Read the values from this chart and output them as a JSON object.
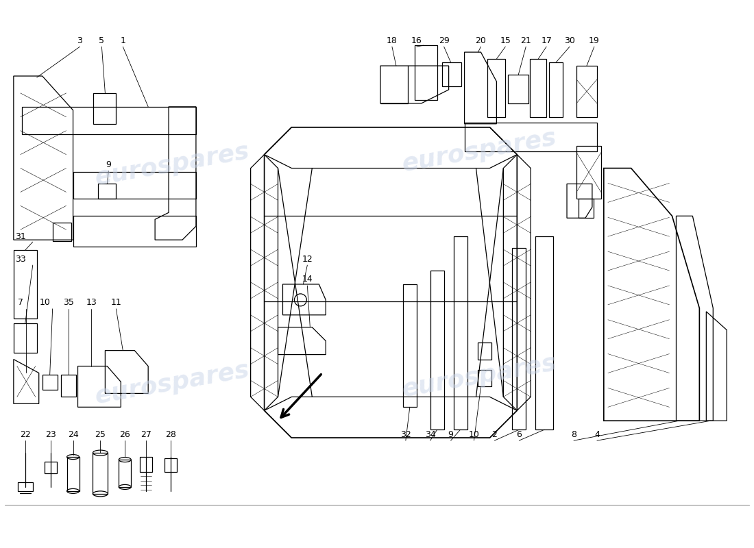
{
  "bg_color": "#ffffff",
  "line_color": "#000000",
  "watermark_color": "#c8d4e8",
  "watermark_text": "eurospares",
  "fig_width": 11.0,
  "fig_height": 8.0,
  "dpi": 100
}
